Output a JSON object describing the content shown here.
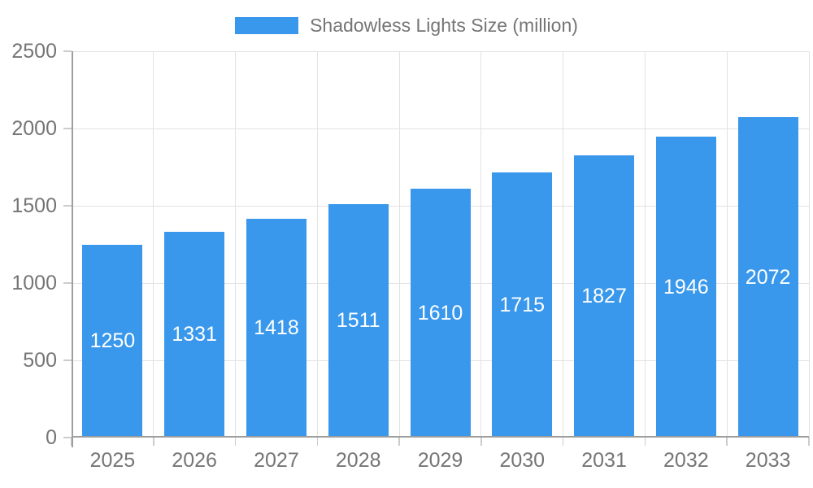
{
  "chart_data": {
    "type": "bar",
    "title": "Shadowless Lights Size (million)",
    "series_name": "Shadowless Lights Size (million)",
    "categories": [
      "2025",
      "2026",
      "2027",
      "2028",
      "2029",
      "2030",
      "2031",
      "2032",
      "2033"
    ],
    "values": [
      1250,
      1331,
      1418,
      1511,
      1610,
      1715,
      1827,
      1946,
      2072
    ],
    "xlabel": "",
    "ylabel": "",
    "ylim": [
      0,
      2500
    ],
    "yticks": [
      0,
      500,
      1000,
      1500,
      2000,
      2500
    ],
    "grid": true,
    "legend_position": "top",
    "bar_color": "#3998ec",
    "bar_label_color": "#ffffff",
    "axis_text_color": "#757575",
    "grid_color": "#e2e2e2",
    "axis_line_color": "#9e9e9e",
    "tick_color": "#cccccc"
  }
}
